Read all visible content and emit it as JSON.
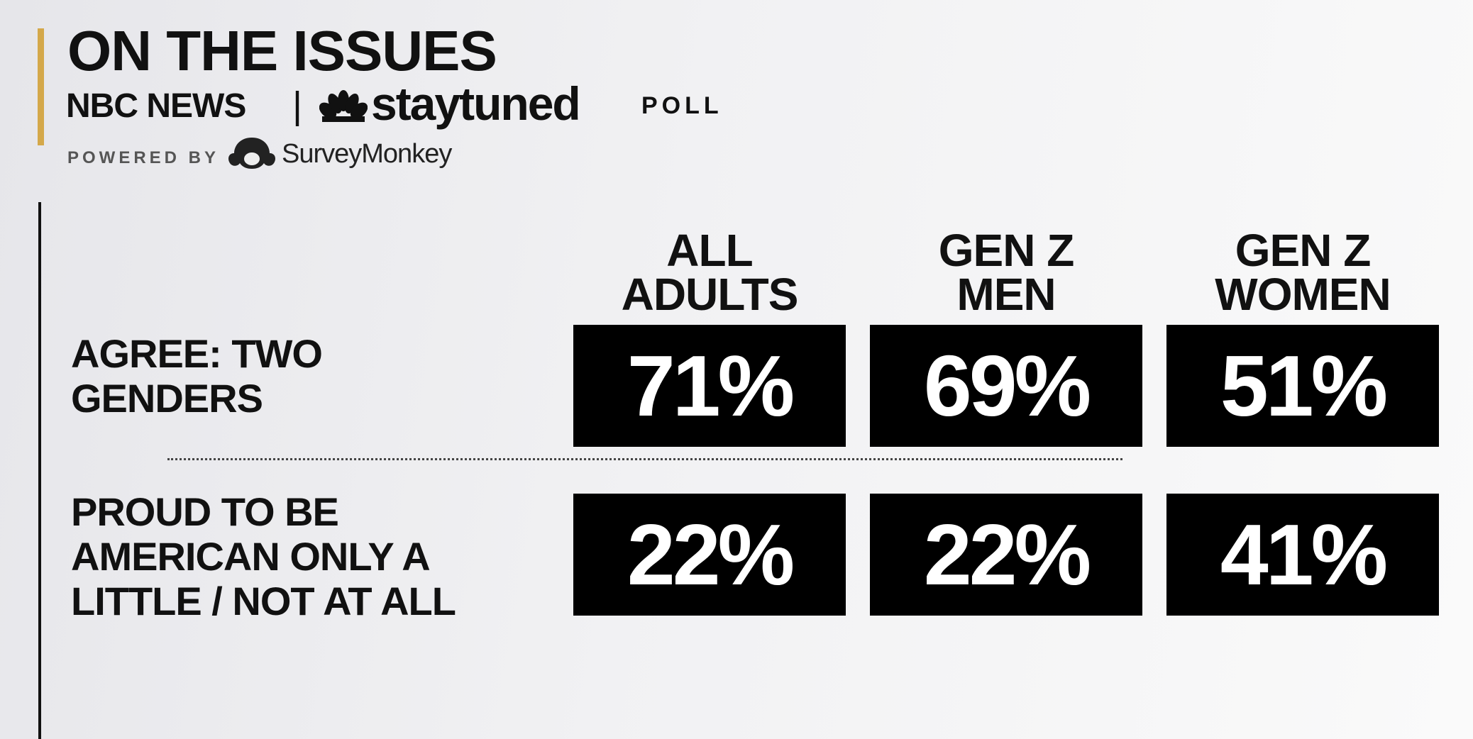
{
  "header": {
    "title": "ON THE ISSUES",
    "brand": "NBC NEWS",
    "separator": "|",
    "program": "staytuned",
    "suffix": "POLL",
    "powered_by": "POWERED BY",
    "partner": "SurveyMonkey"
  },
  "table": {
    "columns": [
      [
        "ALL",
        "ADULTS"
      ],
      [
        "GEN Z",
        "MEN"
      ],
      [
        "GEN Z",
        "WOMEN"
      ]
    ],
    "rows": [
      {
        "label": [
          "AGREE: TWO",
          "GENDERS"
        ],
        "values": [
          "71%",
          "69%",
          "51%"
        ]
      },
      {
        "label": [
          "PROUD TO BE",
          "AMERICAN ONLY A",
          "LITTLE / NOT AT ALL"
        ],
        "values": [
          "22%",
          "22%",
          "41%"
        ]
      }
    ]
  }
}
